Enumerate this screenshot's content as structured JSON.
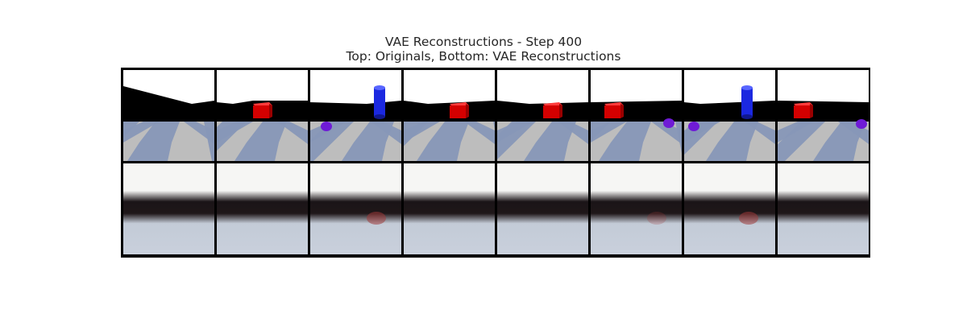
{
  "figure": {
    "title_line1": "VAE Reconstructions - Step 400",
    "title_line2": "Top: Originals, Bottom: VAE Reconstructions"
  },
  "colors": {
    "sky": "#ffffff",
    "wall": "#000000",
    "floor_light": "#bdbdbd",
    "floor_dark": "#8797b7",
    "red_box": "#d40000",
    "blue_cylinder": "#1b28e0",
    "purple_sphere": "#6f1bd6",
    "recon_sky": "#f6f6f4",
    "recon_floor": "#c3cbd7"
  },
  "grid": {
    "columns": 8,
    "rows": [
      {
        "name": "originals",
        "frames": [
          {
            "objects": []
          },
          {
            "objects": [
              {
                "type": "red-box"
              }
            ]
          },
          {
            "objects": [
              {
                "type": "purple-sphere"
              },
              {
                "type": "blue-cylinder"
              }
            ]
          },
          {
            "objects": [
              {
                "type": "red-box"
              }
            ]
          },
          {
            "objects": [
              {
                "type": "red-box"
              }
            ]
          },
          {
            "objects": [
              {
                "type": "red-box"
              },
              {
                "type": "purple-sphere"
              }
            ]
          },
          {
            "objects": [
              {
                "type": "purple-sphere"
              },
              {
                "type": "blue-cylinder"
              }
            ]
          },
          {
            "objects": [
              {
                "type": "red-box"
              },
              {
                "type": "purple-sphere"
              }
            ]
          }
        ]
      },
      {
        "name": "vae-reconstructions",
        "frames": [
          {
            "blur_tint": "none"
          },
          {
            "blur_tint": "none"
          },
          {
            "blur_tint": "red"
          },
          {
            "blur_tint": "none"
          },
          {
            "blur_tint": "none"
          },
          {
            "blur_tint": "faint"
          },
          {
            "blur_tint": "red"
          },
          {
            "blur_tint": "none"
          }
        ]
      }
    ]
  }
}
